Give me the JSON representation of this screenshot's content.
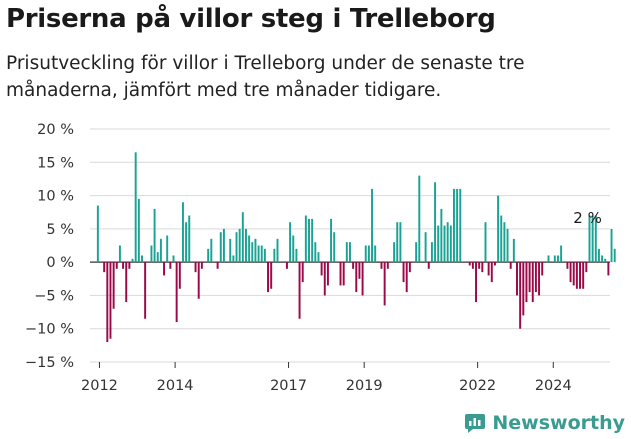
{
  "header": {
    "title": "Priserna på villor steg i Trelleborg",
    "subtitle": "Prisutveckling för villor i Trelleborg under de senaste tre månaderna, jämfört med tre månader tidigare."
  },
  "brand": {
    "name": "Newsworthy",
    "color": "#3a9c90"
  },
  "colors": {
    "positive": "#1aa394",
    "negative": "#9c0848",
    "grid": "#d9d9d9",
    "axis": "#333333"
  },
  "chart_data": {
    "type": "bar",
    "title": "Priserna på villor steg i Trelleborg",
    "subtitle": "Prisutveckling för villor i Trelleborg under de senaste tre månaderna, jämfört med tre månader tidigare.",
    "xlabel": "",
    "ylabel": "",
    "ylim": [
      -15,
      20
    ],
    "yticks": [
      -15,
      -10,
      -5,
      0,
      5,
      10,
      15,
      20
    ],
    "ytick_labels": [
      "−15 %",
      "−10 %",
      "−5 %",
      "0 %",
      "5 %",
      "10 %",
      "15 %",
      "20 %"
    ],
    "xlim": [
      2011.75,
      2025.5
    ],
    "xticks": [
      2012,
      2014,
      2017,
      2019,
      2022,
      2024
    ],
    "xtick_labels": [
      "2012",
      "2014",
      "2017",
      "2019",
      "2022",
      "2024"
    ],
    "grid": true,
    "annotation": {
      "text": "2 %",
      "x": 2024.9,
      "y": 2
    },
    "x_start": 2011.958,
    "x_step": 0.08333,
    "values": [
      8.5,
      0,
      -1.5,
      -12,
      -11.5,
      -7,
      -1,
      2.5,
      -1,
      -6,
      -1,
      0.5,
      16.5,
      9.5,
      1,
      -8.5,
      0,
      2.5,
      8,
      1.5,
      3.5,
      -2,
      4,
      -1,
      1,
      -9,
      -4,
      9,
      6,
      7,
      0,
      -1.5,
      -5.5,
      -1,
      0,
      2,
      3.5,
      0,
      -1,
      4.5,
      5,
      0,
      3.5,
      1,
      4.5,
      5,
      7.5,
      5,
      4,
      3,
      3.5,
      2.5,
      2.5,
      2,
      -4.5,
      -4,
      2,
      3.5,
      0,
      0,
      -1,
      6,
      4,
      2,
      -8.5,
      -3,
      7,
      6.5,
      6.5,
      3,
      1.5,
      -2,
      -5,
      -3.5,
      6.5,
      4.5,
      0,
      -3.5,
      -3.5,
      3,
      3,
      -1,
      -4.5,
      -2.5,
      -5,
      2.5,
      2.5,
      11,
      2.5,
      0,
      -1,
      -6.5,
      -1,
      0,
      3,
      6,
      6,
      -3,
      -4.5,
      -1.5,
      0,
      3,
      13,
      0,
      4.5,
      -1,
      3,
      12,
      5.5,
      8,
      5.5,
      6,
      5.5,
      11,
      11,
      11,
      0,
      0,
      -0.5,
      -1,
      -6,
      -1,
      -1.5,
      6,
      -2,
      -3,
      -0.5,
      10,
      7,
      6,
      5,
      -1,
      3.5,
      -5,
      -10,
      -8,
      -6,
      -4.5,
      -6,
      -4.5,
      -5,
      -2,
      0,
      1,
      0,
      1,
      1,
      2.5,
      0,
      -1,
      -3,
      -3.5,
      -4,
      -4,
      -4,
      -1.5,
      7,
      7,
      7,
      2,
      1,
      0.5,
      -2,
      5,
      2
    ]
  }
}
